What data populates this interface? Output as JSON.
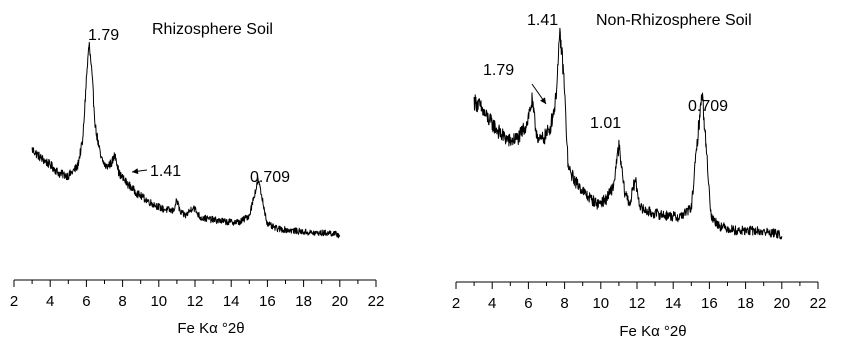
{
  "chart_data": [
    {
      "type": "line",
      "title": "Rhizosphere Soil",
      "xlabel": "Fe Kα °2θ",
      "ylabel": "",
      "xlim": [
        2,
        22
      ],
      "xticks": [
        "2",
        "4",
        "6",
        "8",
        "10",
        "12",
        "14",
        "16",
        "18",
        "20",
        "22"
      ],
      "x_minor_step": 1,
      "y_range": [
        0,
        1
      ],
      "grid": false,
      "noise": 0.02,
      "series": [
        {
          "x": [
            3.0,
            3.5,
            4.0,
            4.5,
            5.0,
            5.5,
            5.8,
            6.0,
            6.15,
            6.3,
            6.5,
            6.8,
            7.1,
            7.4,
            7.6,
            7.8,
            8.2,
            8.8,
            9.5,
            10.2,
            10.8,
            11.0,
            11.2,
            11.5,
            11.9,
            12.3,
            13.0,
            13.8,
            14.5,
            15.0,
            15.3,
            15.5,
            15.7,
            16.0,
            16.5,
            17.5,
            18.5,
            19.5,
            20.0
          ],
          "y": [
            0.48,
            0.44,
            0.41,
            0.37,
            0.36,
            0.4,
            0.52,
            0.8,
            0.96,
            0.82,
            0.58,
            0.44,
            0.4,
            0.42,
            0.46,
            0.37,
            0.33,
            0.28,
            0.24,
            0.21,
            0.2,
            0.25,
            0.19,
            0.18,
            0.22,
            0.17,
            0.16,
            0.15,
            0.15,
            0.18,
            0.28,
            0.34,
            0.26,
            0.14,
            0.12,
            0.11,
            0.1,
            0.1,
            0.09
          ]
        }
      ],
      "annotations": [
        {
          "text": "1.79",
          "x": 6.15,
          "y": 0.96
        },
        {
          "text": "1.41",
          "x": 7.6,
          "y": 0.46,
          "arrow": true
        },
        {
          "text": "0.709",
          "x": 15.5,
          "y": 0.34
        }
      ]
    },
    {
      "type": "line",
      "title": "Non-Rhizosphere Soil",
      "xlabel": "Fe Kα °2θ",
      "ylabel": "",
      "xlim": [
        2,
        22
      ],
      "xticks": [
        "2",
        "4",
        "6",
        "8",
        "10",
        "12",
        "14",
        "16",
        "18",
        "20",
        "22"
      ],
      "x_minor_step": 1,
      "y_range": [
        0,
        1
      ],
      "grid": false,
      "noise": 0.03,
      "series": [
        {
          "x": [
            3.0,
            3.3,
            3.6,
            4.0,
            4.5,
            5.0,
            5.5,
            5.9,
            6.2,
            6.4,
            6.6,
            6.9,
            7.2,
            7.5,
            7.75,
            7.95,
            8.2,
            8.6,
            9.2,
            9.8,
            10.3,
            10.7,
            11.0,
            11.3,
            11.6,
            11.9,
            12.2,
            12.8,
            13.5,
            14.3,
            15.0,
            15.4,
            15.6,
            15.8,
            16.1,
            16.6,
            17.5,
            18.5,
            19.5,
            20.0
          ],
          "y": [
            0.68,
            0.66,
            0.62,
            0.58,
            0.53,
            0.5,
            0.52,
            0.58,
            0.68,
            0.56,
            0.5,
            0.52,
            0.56,
            0.68,
            0.98,
            0.8,
            0.38,
            0.32,
            0.26,
            0.22,
            0.24,
            0.3,
            0.48,
            0.28,
            0.22,
            0.33,
            0.2,
            0.18,
            0.17,
            0.16,
            0.2,
            0.56,
            0.72,
            0.5,
            0.16,
            0.12,
            0.1,
            0.1,
            0.09,
            0.08
          ]
        }
      ],
      "annotations": [
        {
          "text": "1.41",
          "x": 7.75,
          "y": 0.98
        },
        {
          "text": "1.79",
          "x": 6.2,
          "y": 0.68,
          "arrow": true
        },
        {
          "text": "1.01",
          "x": 11.0,
          "y": 0.48
        },
        {
          "text": "0.709",
          "x": 15.6,
          "y": 0.72
        }
      ]
    }
  ]
}
